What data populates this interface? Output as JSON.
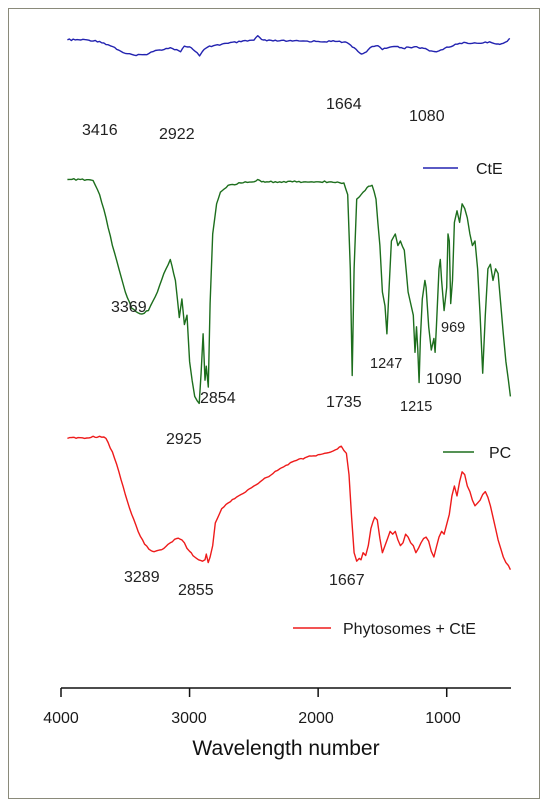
{
  "chart_data": {
    "type": "line",
    "title": "",
    "xlabel": "Wavelength number",
    "ylabel": "",
    "xlim": [
      4000,
      500
    ],
    "x_reversed": true,
    "x_ticks": [
      "4000",
      "3000",
      "2000",
      "1000"
    ],
    "grid": false,
    "legend_placement": "right, one entry beside each trace",
    "series": [
      {
        "name": "CtE",
        "color": "#2323b0",
        "x": [
          3950,
          3800,
          3700,
          3600,
          3550,
          3500,
          3416,
          3350,
          3250,
          3150,
          3100,
          3070,
          3040,
          3000,
          2960,
          2922,
          2900,
          2860,
          2800,
          2700,
          2600,
          2500,
          2470,
          2440,
          2400,
          2300,
          2200,
          2100,
          2000,
          1900,
          1850,
          1800,
          1760,
          1720,
          1690,
          1664,
          1640,
          1610,
          1580,
          1550,
          1520,
          1500,
          1470,
          1440,
          1410,
          1380,
          1340,
          1300,
          1260,
          1220,
          1180,
          1150,
          1120,
          1100,
          1080,
          1060,
          1030,
          1000,
          950,
          900,
          850,
          800,
          750,
          700,
          650,
          600,
          560,
          530,
          510
        ],
        "y": [
          0.955,
          0.955,
          0.93,
          0.85,
          0.79,
          0.74,
          0.705,
          0.72,
          0.79,
          0.83,
          0.8,
          0.765,
          0.855,
          0.845,
          0.78,
          0.7,
          0.77,
          0.84,
          0.87,
          0.9,
          0.925,
          0.95,
          1.02,
          0.96,
          0.94,
          0.94,
          0.935,
          0.935,
          0.93,
          0.93,
          0.93,
          0.92,
          0.89,
          0.83,
          0.77,
          0.73,
          0.75,
          0.8,
          0.85,
          0.86,
          0.84,
          0.8,
          0.82,
          0.84,
          0.85,
          0.85,
          0.82,
          0.84,
          0.84,
          0.83,
          0.82,
          0.8,
          0.78,
          0.77,
          0.765,
          0.78,
          0.8,
          0.84,
          0.86,
          0.9,
          0.91,
          0.9,
          0.9,
          0.92,
          0.91,
          0.89,
          0.9,
          0.93,
          0.98
        ]
      },
      {
        "name": "PC",
        "color": "#1d6e1d",
        "x": [
          3950,
          3850,
          3750,
          3700,
          3650,
          3600,
          3550,
          3500,
          3450,
          3400,
          3369,
          3320,
          3250,
          3200,
          3150,
          3110,
          3080,
          3060,
          3040,
          3020,
          3000,
          2980,
          2960,
          2940,
          2925,
          2910,
          2895,
          2880,
          2870,
          2854,
          2840,
          2820,
          2790,
          2760,
          2700,
          2600,
          2500,
          2470,
          2440,
          2400,
          2300,
          2200,
          2100,
          2000,
          1900,
          1800,
          1770,
          1750,
          1735,
          1720,
          1700,
          1680,
          1650,
          1620,
          1580,
          1550,
          1520,
          1500,
          1480,
          1465,
          1450,
          1430,
          1400,
          1380,
          1360,
          1330,
          1300,
          1280,
          1260,
          1247,
          1235,
          1225,
          1215,
          1205,
          1190,
          1170,
          1160,
          1140,
          1120,
          1100,
          1090,
          1080,
          1060,
          1050,
          1040,
          1020,
          1000,
          990,
          980,
          969,
          955,
          940,
          920,
          900,
          880,
          860,
          840,
          820,
          800,
          780,
          760,
          740,
          720,
          700,
          680,
          660,
          640,
          620,
          600,
          580,
          560,
          540,
          520,
          505
        ],
        "y": [
          0.985,
          0.985,
          0.98,
          0.92,
          0.82,
          0.7,
          0.6,
          0.5,
          0.43,
          0.41,
          0.405,
          0.42,
          0.5,
          0.58,
          0.64,
          0.55,
          0.39,
          0.47,
          0.36,
          0.4,
          0.2,
          0.12,
          0.05,
          0.03,
          0.02,
          0.15,
          0.32,
          0.12,
          0.18,
          0.09,
          0.45,
          0.75,
          0.88,
          0.93,
          0.96,
          0.97,
          0.975,
          0.985,
          0.975,
          0.975,
          0.975,
          0.975,
          0.975,
          0.975,
          0.975,
          0.97,
          0.92,
          0.6,
          0.14,
          0.6,
          0.9,
          0.91,
          0.93,
          0.95,
          0.96,
          0.9,
          0.7,
          0.5,
          0.44,
          0.32,
          0.5,
          0.72,
          0.75,
          0.7,
          0.72,
          0.68,
          0.5,
          0.45,
          0.4,
          0.24,
          0.35,
          0.25,
          0.11,
          0.3,
          0.47,
          0.55,
          0.52,
          0.35,
          0.25,
          0.3,
          0.24,
          0.35,
          0.6,
          0.64,
          0.55,
          0.42,
          0.52,
          0.75,
          0.72,
          0.45,
          0.55,
          0.8,
          0.85,
          0.8,
          0.88,
          0.86,
          0.82,
          0.75,
          0.7,
          0.72,
          0.6,
          0.4,
          0.15,
          0.4,
          0.6,
          0.62,
          0.55,
          0.6,
          0.58,
          0.45,
          0.32,
          0.2,
          0.12,
          0.05
        ]
      },
      {
        "name": "Phytosomes + CtE",
        "color": "#ee1b1b",
        "x": [
          3950,
          3850,
          3800,
          3750,
          3720,
          3700,
          3650,
          3600,
          3550,
          3500,
          3450,
          3400,
          3350,
          3300,
          3289,
          3250,
          3200,
          3150,
          3100,
          3060,
          3040,
          3020,
          3000,
          2960,
          2930,
          2900,
          2880,
          2870,
          2855,
          2840,
          2820,
          2800,
          2750,
          2700,
          2650,
          2600,
          2550,
          2500,
          2450,
          2400,
          2300,
          2200,
          2100,
          2000,
          1900,
          1850,
          1820,
          1800,
          1780,
          1760,
          1740,
          1720,
          1700,
          1680,
          1667,
          1650,
          1630,
          1610,
          1590,
          1560,
          1540,
          1520,
          1500,
          1480,
          1460,
          1440,
          1420,
          1400,
          1380,
          1360,
          1340,
          1320,
          1300,
          1280,
          1260,
          1240,
          1220,
          1200,
          1180,
          1160,
          1140,
          1120,
          1100,
          1080,
          1060,
          1040,
          1020,
          1000,
          980,
          960,
          940,
          920,
          900,
          880,
          860,
          840,
          820,
          800,
          780,
          760,
          740,
          720,
          700,
          680,
          660,
          640,
          620,
          600,
          580,
          560,
          540,
          520,
          505
        ],
        "y": [
          0.955,
          0.96,
          0.958,
          0.97,
          0.962,
          0.97,
          0.955,
          0.86,
          0.72,
          0.56,
          0.42,
          0.3,
          0.21,
          0.165,
          0.16,
          0.165,
          0.18,
          0.22,
          0.25,
          0.24,
          0.22,
          0.18,
          0.16,
          0.12,
          0.1,
          0.09,
          0.1,
          0.14,
          0.08,
          0.12,
          0.2,
          0.36,
          0.46,
          0.5,
          0.53,
          0.56,
          0.59,
          0.62,
          0.65,
          0.68,
          0.74,
          0.79,
          0.82,
          0.84,
          0.86,
          0.88,
          0.9,
          0.87,
          0.85,
          0.7,
          0.4,
          0.15,
          0.09,
          0.11,
          0.1,
          0.15,
          0.13,
          0.2,
          0.32,
          0.4,
          0.38,
          0.25,
          0.15,
          0.2,
          0.25,
          0.3,
          0.28,
          0.3,
          0.24,
          0.2,
          0.22,
          0.28,
          0.26,
          0.22,
          0.2,
          0.15,
          0.18,
          0.22,
          0.25,
          0.26,
          0.23,
          0.16,
          0.12,
          0.19,
          0.26,
          0.3,
          0.28,
          0.35,
          0.42,
          0.55,
          0.62,
          0.55,
          0.65,
          0.72,
          0.7,
          0.62,
          0.58,
          0.52,
          0.48,
          0.5,
          0.52,
          0.56,
          0.58,
          0.54,
          0.48,
          0.4,
          0.32,
          0.24,
          0.18,
          0.12,
          0.08,
          0.06,
          0.03
        ]
      }
    ],
    "annotations": [
      {
        "text": "3416",
        "x": 3416,
        "series": "CtE"
      },
      {
        "text": "2922",
        "x": 2922,
        "series": "CtE"
      },
      {
        "text": "1664",
        "x": 1664,
        "series": "CtE"
      },
      {
        "text": "1080",
        "x": 1080,
        "series": "CtE"
      },
      {
        "text": "3369",
        "x": 3369,
        "series": "PC"
      },
      {
        "text": "2925",
        "x": 2925,
        "series": "PC"
      },
      {
        "text": "2854",
        "x": 2854,
        "series": "PC"
      },
      {
        "text": "1735",
        "x": 1735,
        "series": "PC"
      },
      {
        "text": "1247",
        "x": 1247,
        "series": "PC"
      },
      {
        "text": "1215",
        "x": 1215,
        "series": "PC"
      },
      {
        "text": "1090",
        "x": 1090,
        "series": "PC"
      },
      {
        "text": "969",
        "x": 969,
        "series": "PC"
      },
      {
        "text": "3289",
        "x": 3289,
        "series": "Phytosomes + CtE"
      },
      {
        "text": "2855",
        "x": 2855,
        "series": "Phytosomes + CtE"
      },
      {
        "text": "1667",
        "x": 1667,
        "series": "Phytosomes + CtE"
      }
    ]
  }
}
